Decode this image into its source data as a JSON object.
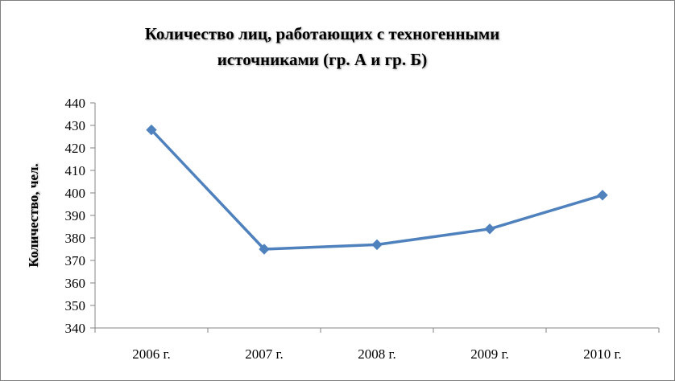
{
  "chart_data": {
    "type": "line",
    "title_lines": [
      "Количество лиц, работающих с техногенными",
      "источниками (гр. А и гр. Б)"
    ],
    "xlabel": "",
    "ylabel": "Количество, чел.",
    "categories": [
      "2006 г.",
      "2007 г.",
      "2008 г.",
      "2009 г.",
      "2010 г."
    ],
    "series": [
      {
        "values": [
          428,
          375,
          377,
          384,
          399
        ],
        "color": "#4f81bd",
        "marker": "diamond"
      }
    ],
    "ylim": [
      340,
      440
    ],
    "ytick_step": 10,
    "yticks": [
      "440",
      "430",
      "420",
      "410",
      "400",
      "390",
      "380",
      "370",
      "360",
      "350",
      "340"
    ],
    "grid": false,
    "legend": "none"
  }
}
